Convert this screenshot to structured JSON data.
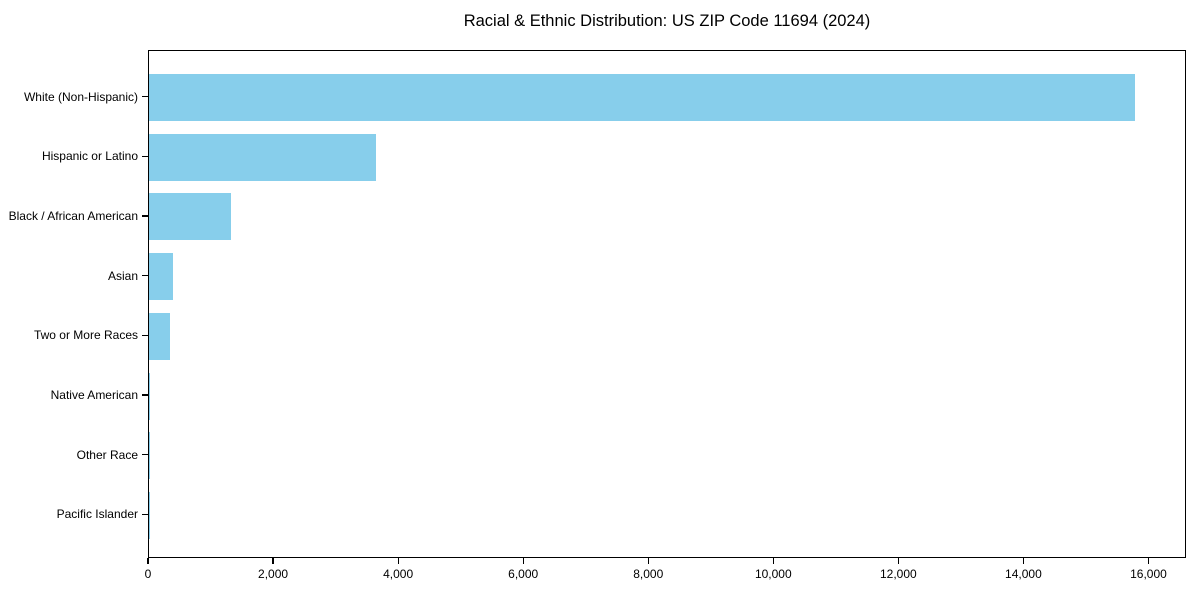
{
  "chart_data": {
    "type": "bar",
    "orientation": "horizontal",
    "title": "Racial & Ethnic Distribution: US ZIP Code 11694 (2024)",
    "categories": [
      "White (Non-Hispanic)",
      "Hispanic or Latino",
      "Black / African American",
      "Asian",
      "Two or More Races",
      "Native American",
      "Other Race",
      "Pacific Islander"
    ],
    "values": [
      15800,
      3630,
      1310,
      380,
      330,
      20,
      10,
      3
    ],
    "xlabel": "",
    "ylabel": "",
    "xlim": [
      0,
      16600
    ],
    "xticks": [
      0,
      2000,
      4000,
      6000,
      8000,
      10000,
      12000,
      14000,
      16000
    ],
    "xtick_labels": [
      "0",
      "2,000",
      "4,000",
      "6,000",
      "8,000",
      "10,000",
      "12,000",
      "14,000",
      "16,000"
    ],
    "bar_color": "#87CEEB",
    "axis_color": "#000000",
    "grid": false,
    "legend": "none",
    "background": "#ffffff"
  }
}
